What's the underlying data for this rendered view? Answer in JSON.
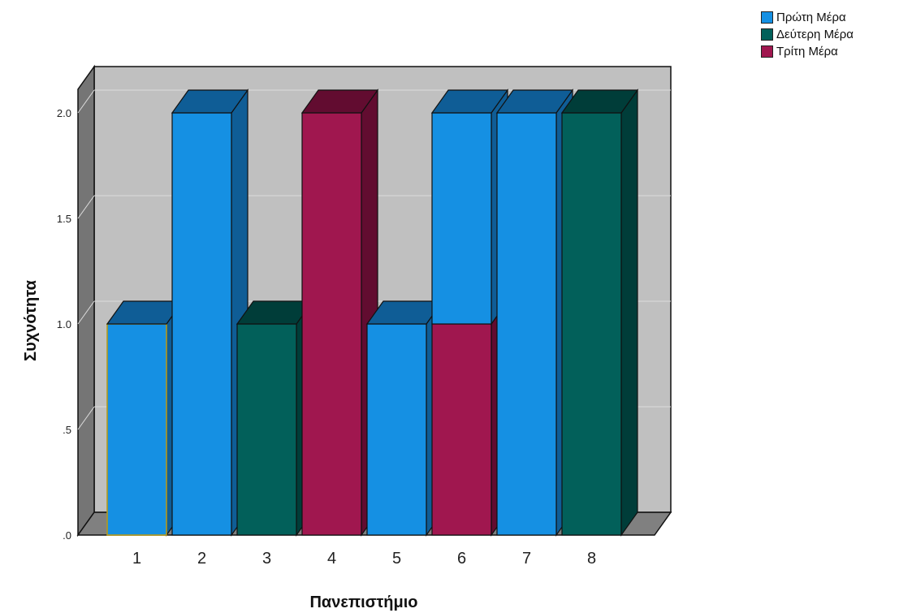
{
  "chart_data": {
    "type": "bar",
    "variant": "3d-stacked",
    "categories": [
      "1",
      "2",
      "3",
      "4",
      "5",
      "6",
      "7",
      "8"
    ],
    "series": [
      {
        "name": "Πρώτη Μέρα",
        "color": "#1590e3",
        "side": "#0f5d96",
        "values": [
          1,
          2,
          0,
          0,
          1,
          1,
          2,
          0
        ]
      },
      {
        "name": "Δεύτερη Μέρα",
        "color": "#02605a",
        "side": "#003d39",
        "values": [
          0,
          0,
          1,
          0,
          0,
          0,
          0,
          2
        ]
      },
      {
        "name": "Τρίτη Μέρα",
        "color": "#a0174f",
        "side": "#620c30",
        "values": [
          0,
          0,
          0,
          2,
          0,
          1,
          0,
          0
        ]
      }
    ],
    "stack_order": [
      "Τρίτη Μέρα",
      "Δεύτερη Μέρα",
      "Πρώτη Μέρα"
    ],
    "yticks": [
      ".0",
      ".5",
      "1.0",
      "1.5",
      "2.0"
    ],
    "ylim": [
      0,
      2
    ],
    "xlabel": "Πανεπιστήμιο",
    "ylabel": "Συχνότητα",
    "grid": true,
    "legend_position": "top-right",
    "wall_color": "#c0c0c0",
    "floor_color": "#808080"
  }
}
